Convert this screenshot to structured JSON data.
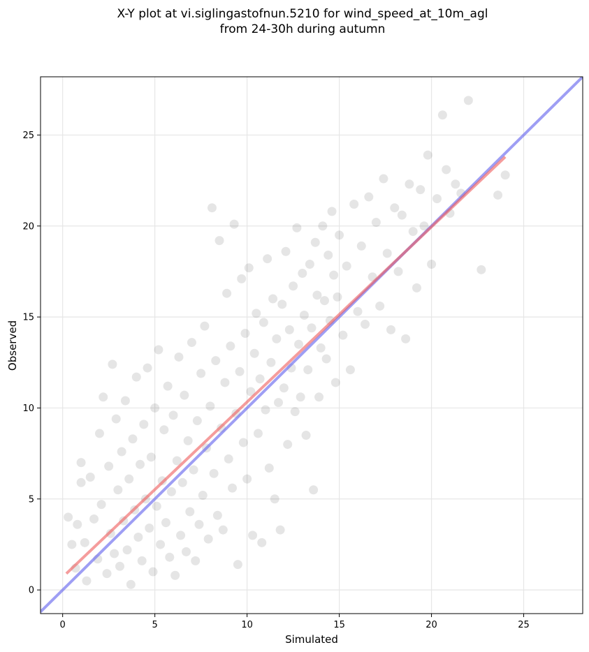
{
  "chart_data": {
    "type": "scatter",
    "title_line1": "X-Y plot at vi.siglingastofnun.5210 for wind_speed_at_10m_agl",
    "title_line2": "from 24-30h during autumn",
    "xlabel": "Simulated",
    "ylabel": "Observed",
    "xlim": [
      -1.2,
      28.2
    ],
    "ylim": [
      -1.3,
      28.2
    ],
    "xticks": [
      0,
      5,
      10,
      15,
      20,
      25
    ],
    "yticks": [
      0,
      5,
      10,
      15,
      20,
      25
    ],
    "grid": true,
    "colors": {
      "points": "#000000",
      "identity_line": "#6a6aee",
      "fit_line": "#ee5a5a",
      "grid": "#e6e6e6"
    },
    "series": [
      {
        "kind": "points",
        "points": [
          [
            0.3,
            4.0
          ],
          [
            0.5,
            2.5
          ],
          [
            0.7,
            1.2
          ],
          [
            0.8,
            3.6
          ],
          [
            1.0,
            5.9
          ],
          [
            1.0,
            7.0
          ],
          [
            1.2,
            2.6
          ],
          [
            1.3,
            0.5
          ],
          [
            1.5,
            6.2
          ],
          [
            1.7,
            3.9
          ],
          [
            1.9,
            1.7
          ],
          [
            2.0,
            8.6
          ],
          [
            2.1,
            4.7
          ],
          [
            2.2,
            10.6
          ],
          [
            2.4,
            0.9
          ],
          [
            2.5,
            6.8
          ],
          [
            2.6,
            3.1
          ],
          [
            2.7,
            12.4
          ],
          [
            2.8,
            2.0
          ],
          [
            2.9,
            9.4
          ],
          [
            3.0,
            5.5
          ],
          [
            3.1,
            1.3
          ],
          [
            3.2,
            7.6
          ],
          [
            3.3,
            3.8
          ],
          [
            3.4,
            10.4
          ],
          [
            3.5,
            2.2
          ],
          [
            3.6,
            6.1
          ],
          [
            3.7,
            0.3
          ],
          [
            3.8,
            8.3
          ],
          [
            3.9,
            4.4
          ],
          [
            4.0,
            11.7
          ],
          [
            4.1,
            2.9
          ],
          [
            4.2,
            6.9
          ],
          [
            4.3,
            1.6
          ],
          [
            4.4,
            9.1
          ],
          [
            4.5,
            5.0
          ],
          [
            4.6,
            12.2
          ],
          [
            4.7,
            3.4
          ],
          [
            4.8,
            7.3
          ],
          [
            4.9,
            1.0
          ],
          [
            5.0,
            10.0
          ],
          [
            5.1,
            4.6
          ],
          [
            5.2,
            13.2
          ],
          [
            5.3,
            2.5
          ],
          [
            5.4,
            6.0
          ],
          [
            5.5,
            8.8
          ],
          [
            5.6,
            3.7
          ],
          [
            5.7,
            11.2
          ],
          [
            5.8,
            1.8
          ],
          [
            5.9,
            5.4
          ],
          [
            6.0,
            9.6
          ],
          [
            6.1,
            0.8
          ],
          [
            6.2,
            7.1
          ],
          [
            6.3,
            12.8
          ],
          [
            6.4,
            3.0
          ],
          [
            6.5,
            5.9
          ],
          [
            6.6,
            10.7
          ],
          [
            6.7,
            2.1
          ],
          [
            6.8,
            8.2
          ],
          [
            6.9,
            4.3
          ],
          [
            7.0,
            13.6
          ],
          [
            7.1,
            6.6
          ],
          [
            7.2,
            1.6
          ],
          [
            7.3,
            9.3
          ],
          [
            7.4,
            3.6
          ],
          [
            7.5,
            11.9
          ],
          [
            7.6,
            5.2
          ],
          [
            7.7,
            14.5
          ],
          [
            7.8,
            7.8
          ],
          [
            7.9,
            2.8
          ],
          [
            8.0,
            10.1
          ],
          [
            8.1,
            21.0
          ],
          [
            8.2,
            6.4
          ],
          [
            8.3,
            12.6
          ],
          [
            8.4,
            4.1
          ],
          [
            8.5,
            19.2
          ],
          [
            8.6,
            8.9
          ],
          [
            8.7,
            3.3
          ],
          [
            8.8,
            11.4
          ],
          [
            8.9,
            16.3
          ],
          [
            9.0,
            7.2
          ],
          [
            9.1,
            13.4
          ],
          [
            9.2,
            5.6
          ],
          [
            9.3,
            20.1
          ],
          [
            9.4,
            9.7
          ],
          [
            9.5,
            1.4
          ],
          [
            9.6,
            12.0
          ],
          [
            9.7,
            17.1
          ],
          [
            9.8,
            8.1
          ],
          [
            9.9,
            14.1
          ],
          [
            10.0,
            6.1
          ],
          [
            10.1,
            17.7
          ],
          [
            10.2,
            10.9
          ],
          [
            10.3,
            3.0
          ],
          [
            10.4,
            13.0
          ],
          [
            10.5,
            15.2
          ],
          [
            10.6,
            8.6
          ],
          [
            10.7,
            11.6
          ],
          [
            10.8,
            2.6
          ],
          [
            10.9,
            14.7
          ],
          [
            11.0,
            9.9
          ],
          [
            11.1,
            18.2
          ],
          [
            11.2,
            6.7
          ],
          [
            11.3,
            12.5
          ],
          [
            11.4,
            16.0
          ],
          [
            11.5,
            5.0
          ],
          [
            11.6,
            13.8
          ],
          [
            11.7,
            10.3
          ],
          [
            11.8,
            3.3
          ],
          [
            11.9,
            15.7
          ],
          [
            12.0,
            11.1
          ],
          [
            12.1,
            18.6
          ],
          [
            12.2,
            8.0
          ],
          [
            12.3,
            14.3
          ],
          [
            12.4,
            12.2
          ],
          [
            12.5,
            16.7
          ],
          [
            12.6,
            9.8
          ],
          [
            12.7,
            19.9
          ],
          [
            12.8,
            13.5
          ],
          [
            12.9,
            10.6
          ],
          [
            13.0,
            17.4
          ],
          [
            13.1,
            15.1
          ],
          [
            13.2,
            8.5
          ],
          [
            13.3,
            12.1
          ],
          [
            13.4,
            17.9
          ],
          [
            13.5,
            14.4
          ],
          [
            13.6,
            5.5
          ],
          [
            13.7,
            19.1
          ],
          [
            13.8,
            16.2
          ],
          [
            13.9,
            10.6
          ],
          [
            14.0,
            13.3
          ],
          [
            14.1,
            20.0
          ],
          [
            14.2,
            15.9
          ],
          [
            14.3,
            12.7
          ],
          [
            14.4,
            18.4
          ],
          [
            14.5,
            14.8
          ],
          [
            14.6,
            20.8
          ],
          [
            14.7,
            17.3
          ],
          [
            14.8,
            11.4
          ],
          [
            14.9,
            16.1
          ],
          [
            15.0,
            19.5
          ],
          [
            15.2,
            14.0
          ],
          [
            15.4,
            17.8
          ],
          [
            15.6,
            12.1
          ],
          [
            15.8,
            21.2
          ],
          [
            16.0,
            15.3
          ],
          [
            16.2,
            18.9
          ],
          [
            16.4,
            14.6
          ],
          [
            16.6,
            21.6
          ],
          [
            16.8,
            17.2
          ],
          [
            17.0,
            20.2
          ],
          [
            17.2,
            15.6
          ],
          [
            17.4,
            22.6
          ],
          [
            17.6,
            18.5
          ],
          [
            17.8,
            14.3
          ],
          [
            18.0,
            21.0
          ],
          [
            18.2,
            17.5
          ],
          [
            18.4,
            20.6
          ],
          [
            18.6,
            13.8
          ],
          [
            18.8,
            22.3
          ],
          [
            19.0,
            19.7
          ],
          [
            19.2,
            16.6
          ],
          [
            19.4,
            22.0
          ],
          [
            19.6,
            20.0
          ],
          [
            19.8,
            23.9
          ],
          [
            20.0,
            17.9
          ],
          [
            20.3,
            21.5
          ],
          [
            20.6,
            26.1
          ],
          [
            20.8,
            23.1
          ],
          [
            21.0,
            20.7
          ],
          [
            21.3,
            22.3
          ],
          [
            21.6,
            21.8
          ],
          [
            22.0,
            26.9
          ],
          [
            22.7,
            17.6
          ],
          [
            23.6,
            21.7
          ],
          [
            24.0,
            22.8
          ]
        ]
      },
      {
        "kind": "identity_line",
        "x": [
          -1.2,
          28.2
        ],
        "y": [
          -1.2,
          28.2
        ]
      },
      {
        "kind": "fit_line",
        "x": [
          0.2,
          24.0
        ],
        "y": [
          0.9,
          23.8
        ]
      }
    ]
  }
}
